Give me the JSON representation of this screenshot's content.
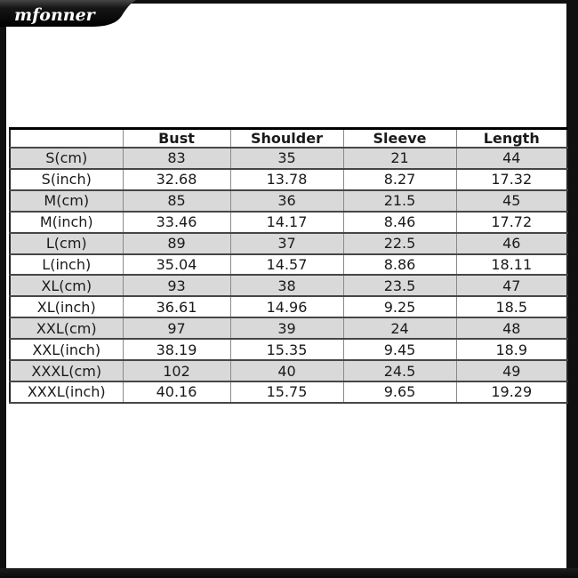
{
  "brand": {
    "logo_text": "mfonner"
  },
  "colors": {
    "frame_black": "#101010",
    "banner_black": "#0d0d0d",
    "row_alt_bg": "#d9d9d9",
    "row_bg": "#ffffff",
    "border_dark": "#464646",
    "border_light": "#8a8a8a",
    "text": "#1a1a1a",
    "logo_text_color": "#ffffff"
  },
  "size_chart": {
    "columns": [
      "",
      "Bust",
      "Shoulder",
      "Sleeve",
      "Length"
    ],
    "rows": [
      {
        "label": "S(cm)",
        "values": [
          "83",
          "35",
          "21",
          "44"
        ]
      },
      {
        "label": "S(inch)",
        "values": [
          "32.68",
          "13.78",
          "8.27",
          "17.32"
        ]
      },
      {
        "label": "M(cm)",
        "values": [
          "85",
          "36",
          "21.5",
          "45"
        ]
      },
      {
        "label": "M(inch)",
        "values": [
          "33.46",
          "14.17",
          "8.46",
          "17.72"
        ]
      },
      {
        "label": "L(cm)",
        "values": [
          "89",
          "37",
          "22.5",
          "46"
        ]
      },
      {
        "label": "L(inch)",
        "values": [
          "35.04",
          "14.57",
          "8.86",
          "18.11"
        ]
      },
      {
        "label": "XL(cm)",
        "values": [
          "93",
          "38",
          "23.5",
          "47"
        ]
      },
      {
        "label": "XL(inch)",
        "values": [
          "36.61",
          "14.96",
          "9.25",
          "18.5"
        ]
      },
      {
        "label": "XXL(cm)",
        "values": [
          "97",
          "39",
          "24",
          "48"
        ]
      },
      {
        "label": "XXL(inch)",
        "values": [
          "38.19",
          "15.35",
          "9.45",
          "18.9"
        ]
      },
      {
        "label": "XXXL(cm)",
        "values": [
          "102",
          "40",
          "24.5",
          "49"
        ]
      },
      {
        "label": "XXXL(inch)",
        "values": [
          "40.16",
          "15.75",
          "9.65",
          "19.29"
        ]
      }
    ]
  }
}
